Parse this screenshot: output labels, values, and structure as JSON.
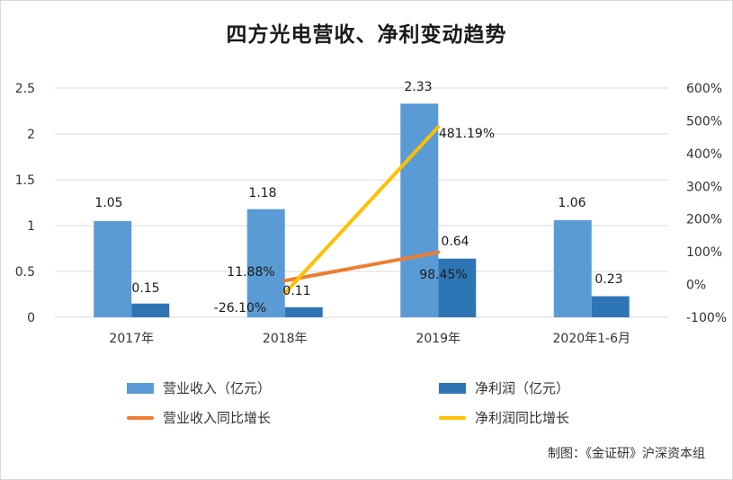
{
  "title": "四方光电营收、净利变动趋势",
  "footer": "制图：《金证研》沪深资本组",
  "chart_data": {
    "type": "bar",
    "categories": [
      "2017年",
      "2018年",
      "2019年",
      "2020年1-6月"
    ],
    "series": [
      {
        "name": "营业收入（亿元）",
        "kind": "bar",
        "axis": "left",
        "color": "#5b9bd5",
        "values": [
          1.05,
          1.18,
          2.33,
          1.06
        ],
        "labels": [
          "1.05",
          "1.18",
          "2.33",
          "1.06"
        ]
      },
      {
        "name": "净利润（亿元）",
        "kind": "bar",
        "axis": "left",
        "color": "#2e75b6",
        "values": [
          0.15,
          0.11,
          0.64,
          0.23
        ],
        "labels": [
          "0.15",
          "0.11",
          "0.64",
          "0.23"
        ]
      },
      {
        "name": "营业收入同比增长",
        "kind": "line",
        "axis": "right",
        "color": "#ed7d31",
        "values": [
          null,
          11.88,
          98.45,
          null
        ],
        "labels": [
          null,
          "11.88%",
          "98.45%",
          null
        ]
      },
      {
        "name": "净利润同比增长",
        "kind": "line",
        "axis": "right",
        "color": "#ffc000",
        "values": [
          null,
          -26.1,
          481.19,
          null
        ],
        "labels": [
          null,
          "-26.10%",
          "481.19%",
          null
        ]
      }
    ],
    "y_left": {
      "min": 0,
      "max": 2.5,
      "ticks": [
        "0",
        "0.5",
        "1",
        "1.5",
        "2",
        "2.5"
      ]
    },
    "y_right": {
      "min": -100,
      "max": 600,
      "ticks": [
        "-100%",
        "0%",
        "100%",
        "200%",
        "300%",
        "400%",
        "500%",
        "600%"
      ]
    },
    "grid": true,
    "legend_position": "bottom"
  }
}
